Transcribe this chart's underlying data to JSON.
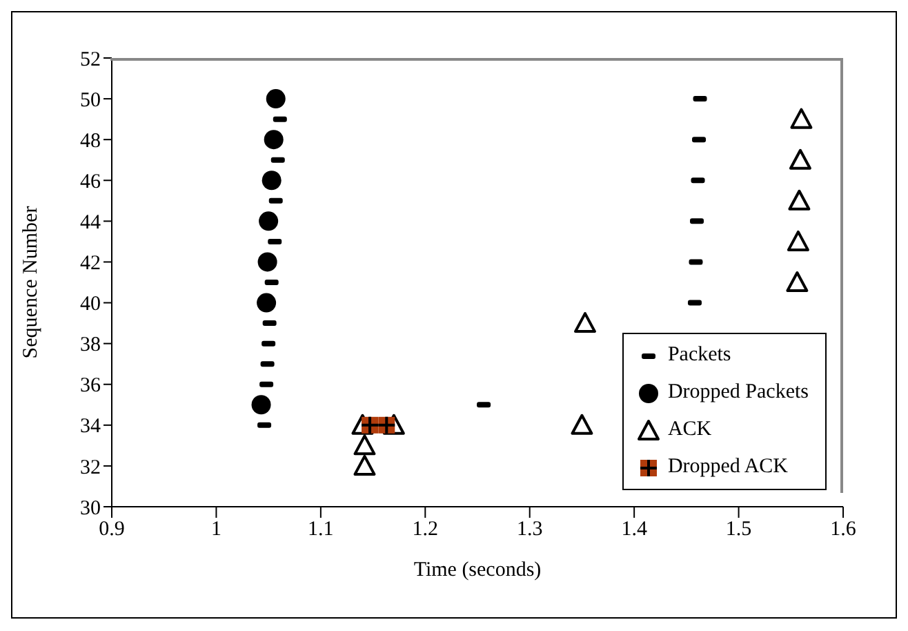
{
  "chart_data": {
    "type": "scatter",
    "xlabel": "Time (seconds)",
    "ylabel": "Sequence Number",
    "xlim": [
      0.9,
      1.6
    ],
    "xticks": [
      0.9,
      1,
      1.1,
      1.2,
      1.3,
      1.4,
      1.5,
      1.6
    ],
    "ylim": [
      30,
      52
    ],
    "yticks": [
      30,
      32,
      34,
      36,
      38,
      40,
      42,
      44,
      46,
      48,
      50,
      52
    ],
    "grid": false,
    "legend": "bottom right",
    "series": [
      {
        "name": "Packets",
        "color": "#000000",
        "x": [
          1.061,
          1.059,
          1.057,
          1.056,
          1.053,
          1.051,
          1.05,
          1.049,
          1.048,
          1.046,
          1.256,
          1.463,
          1.462,
          1.461,
          1.46,
          1.459,
          1.458
        ],
        "values": [
          49,
          47,
          45,
          43,
          41,
          39,
          38,
          37,
          36,
          34,
          35,
          50,
          48,
          46,
          44,
          42,
          40
        ]
      },
      {
        "name": "Dropped Packets",
        "color": "#000000",
        "marker": "circle",
        "x": [
          1.057,
          1.055,
          1.053,
          1.05,
          1.049,
          1.048,
          1.043
        ],
        "values": [
          50,
          48,
          46,
          44,
          42,
          40,
          35
        ]
      },
      {
        "name": "ACK",
        "color": "#000000",
        "marker": "triangle",
        "x": [
          1.142,
          1.142,
          1.14,
          1.17,
          1.35,
          1.353,
          1.56,
          1.559,
          1.558,
          1.557,
          1.556
        ],
        "values": [
          32,
          33,
          34,
          34,
          34,
          39,
          49,
          47,
          45,
          43,
          41
        ]
      },
      {
        "name": "Dropped ACK",
        "color": "#b03c0c",
        "marker": "square",
        "x": [
          1.147,
          1.163
        ],
        "values": [
          34,
          34
        ]
      }
    ]
  }
}
